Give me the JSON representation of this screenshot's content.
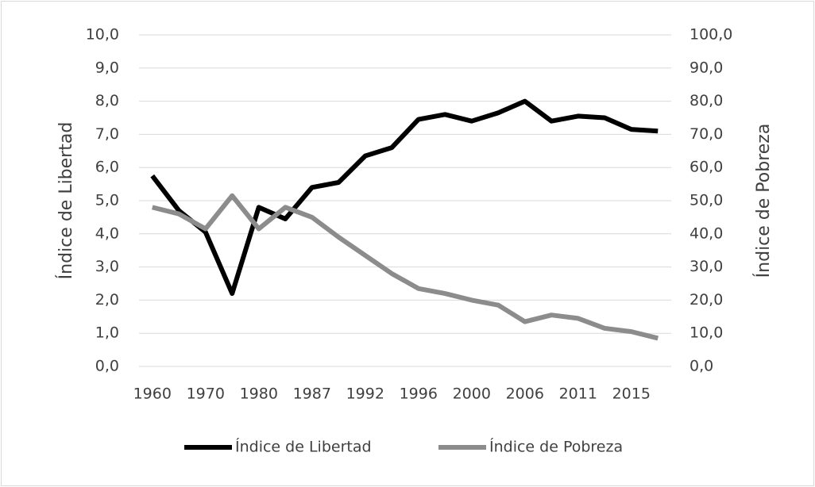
{
  "chart_data": {
    "type": "line",
    "categories": [
      "1960",
      null,
      "1970",
      null,
      "1980",
      null,
      "1987",
      null,
      "1992",
      null,
      "1996",
      null,
      "2000",
      null,
      "2006",
      null,
      "2011",
      null,
      "2015",
      null
    ],
    "ylabel": "Índice de Libertad",
    "y2label": "Índice de Pobreza",
    "ylim": [
      0,
      10
    ],
    "yticks": [
      {
        "value": 0,
        "label": "0,0"
      },
      {
        "value": 1,
        "label": "1,0"
      },
      {
        "value": 2,
        "label": "2,0"
      },
      {
        "value": 3,
        "label": "3,0"
      },
      {
        "value": 4,
        "label": "4,0"
      },
      {
        "value": 5,
        "label": "5,0"
      },
      {
        "value": 6,
        "label": "6,0"
      },
      {
        "value": 7,
        "label": "7,0"
      },
      {
        "value": 8,
        "label": "8,0"
      },
      {
        "value": 9,
        "label": "9,0"
      },
      {
        "value": 10,
        "label": "10,0"
      }
    ],
    "y2lim": [
      0,
      100
    ],
    "y2ticks": [
      {
        "value": 0,
        "label": "0,0"
      },
      {
        "value": 10,
        "label": "10,0"
      },
      {
        "value": 20,
        "label": "20,0"
      },
      {
        "value": 30,
        "label": "30,0"
      },
      {
        "value": 40,
        "label": "40,0"
      },
      {
        "value": 50,
        "label": "50,0"
      },
      {
        "value": 60,
        "label": "60,0"
      },
      {
        "value": 70,
        "label": "70,0"
      },
      {
        "value": 80,
        "label": "80,0"
      },
      {
        "value": 90,
        "label": "90,0"
      },
      {
        "value": 100,
        "label": "100,0"
      }
    ],
    "grid": true,
    "legend": "bottom",
    "series": [
      {
        "name": "Índice de Libertad",
        "color": "#000000",
        "values": [
          5.75,
          4.7,
          4.05,
          2.2,
          4.8,
          4.45,
          5.4,
          5.55,
          6.35,
          6.6,
          7.45,
          7.6,
          7.4,
          7.65,
          8.0,
          7.4,
          7.55,
          7.5,
          7.15,
          7.1
        ]
      },
      {
        "name": "Índice de Pobreza",
        "color": "#8c8c8c",
        "axis": "y2",
        "values": [
          48,
          46,
          41.5,
          51.5,
          41.5,
          48,
          45,
          39,
          33.5,
          28,
          23.5,
          22,
          20,
          18.5,
          13.5,
          15.5,
          14.5,
          11.5,
          10.5,
          8.5
        ]
      }
    ]
  }
}
